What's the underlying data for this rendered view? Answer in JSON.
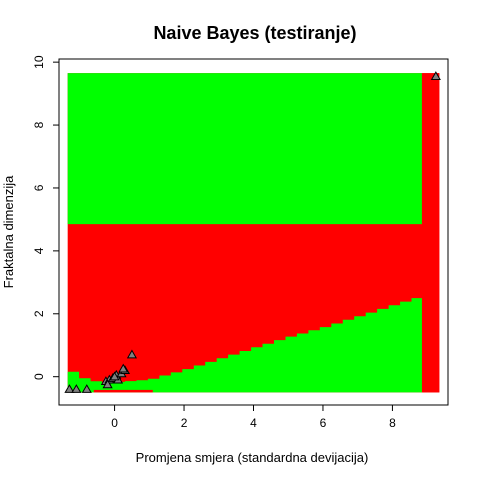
{
  "chart_data": {
    "type": "scatter",
    "title": "Naive Bayes (testiranje)",
    "xlabel": "Promjena smjera (standardna devijacija)",
    "ylabel": "Fraktalna dimenzija",
    "xlim": [
      -1.6,
      9.6
    ],
    "ylim": [
      -0.9,
      10.1
    ],
    "xticks": [
      0,
      2,
      4,
      6,
      8
    ],
    "yticks": [
      0,
      2,
      4,
      6,
      8,
      10
    ],
    "grid": false,
    "legend": "none",
    "colors": {
      "class_a": "#00ff00",
      "class_b": "#ff0000",
      "points": "#808080"
    },
    "regions": {
      "extent": {
        "x": [
          -1.35,
          9.35
        ],
        "y": [
          -0.5,
          9.65
        ]
      },
      "green_top": {
        "x": [
          -1.35,
          8.85
        ],
        "y": [
          4.85,
          9.65
        ]
      },
      "red_right_strip": {
        "x": [
          8.85,
          9.35
        ],
        "y": [
          -0.5,
          9.65
        ]
      },
      "green_lower_wedge": {
        "x_start": -1.35,
        "x_end": 8.85,
        "step": 0.33,
        "boundary": [
          [
            -1.35,
            0.3
          ],
          [
            -1.0,
            0.0
          ],
          [
            -0.7,
            -0.1
          ],
          [
            -0.3,
            -0.2
          ],
          [
            1.0,
            -0.1
          ],
          [
            2.0,
            0.2
          ],
          [
            3.0,
            0.55
          ],
          [
            4.0,
            0.9
          ],
          [
            5.0,
            1.25
          ],
          [
            6.0,
            1.55
          ],
          [
            7.0,
            1.9
          ],
          [
            8.0,
            2.25
          ],
          [
            8.85,
            2.55
          ]
        ],
        "bottom": -0.5
      },
      "red_bottom_strip": {
        "x": [
          -0.6,
          1.1
        ],
        "y": [
          -0.5,
          -0.42
        ]
      }
    },
    "points": {
      "x": [
        -1.3,
        -1.1,
        -0.8,
        -0.25,
        -0.15,
        -0.05,
        0.05,
        0.1,
        0.2,
        0.3,
        -0.2,
        0.0,
        0.25,
        0.5,
        9.25
      ],
      "y": [
        -0.4,
        -0.4,
        -0.4,
        -0.15,
        -0.1,
        -0.05,
        0.05,
        -0.1,
        0.1,
        0.2,
        -0.25,
        0.0,
        0.25,
        0.7,
        9.55
      ]
    }
  }
}
